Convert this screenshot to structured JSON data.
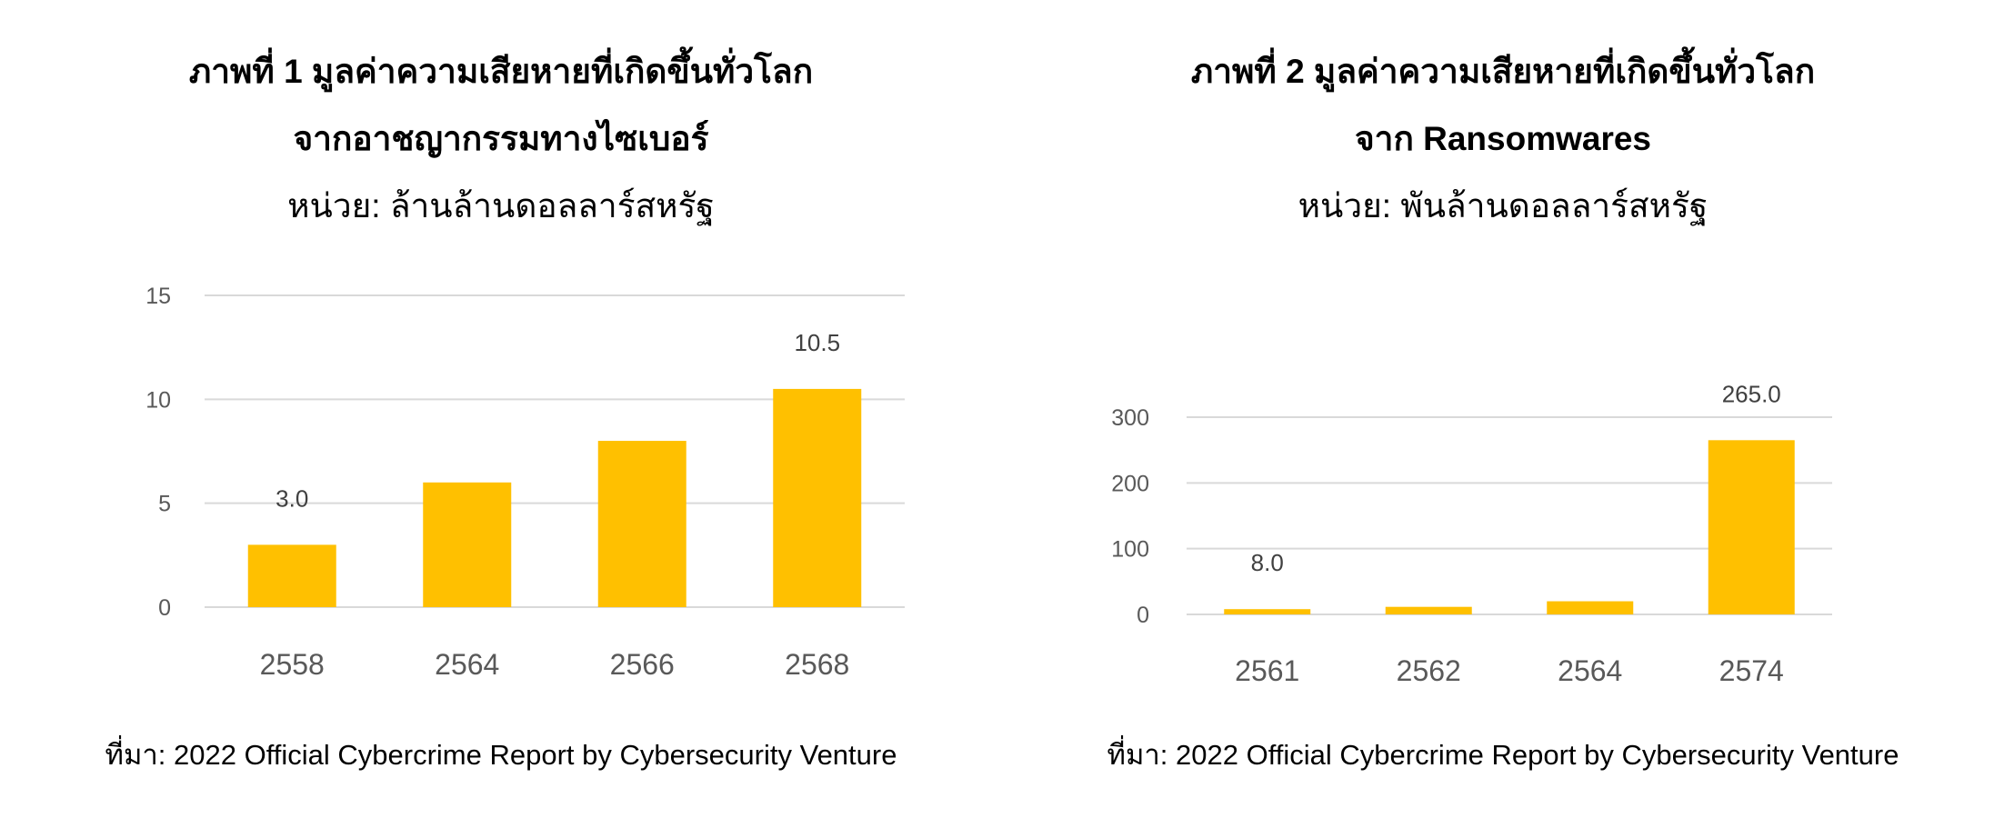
{
  "colors": {
    "bar": "#FFC000",
    "grid": "#D9D9D9",
    "tick_text": "#595959"
  },
  "chart_data": [
    {
      "type": "bar",
      "title": "ภาพที่ 1 มูลค่าความเสียหายที่เกิดขึ้นทั่วโลก",
      "subtitle": "จากอาชญากรรมทางไซเบอร์",
      "unit": "หน่วย: ล้านล้านดอลลาร์สหรัฐ",
      "categories": [
        "2558",
        "2564",
        "2566",
        "2568"
      ],
      "values": [
        3.0,
        6.0,
        8.0,
        10.5
      ],
      "data_labels": [
        "3.0",
        "",
        "",
        "10.5"
      ],
      "ylim": [
        0,
        15
      ],
      "yticks": [
        0,
        5,
        10,
        15
      ],
      "grid": true,
      "source": "ที่มา: 2022 Official Cybercrime Report by Cybersecurity Venture"
    },
    {
      "type": "bar",
      "title": "ภาพที่ 2 มูลค่าความเสียหายที่เกิดขึ้นทั่วโลก",
      "subtitle": "จาก Ransomwares",
      "unit": "หน่วย: พันล้านดอลลาร์สหรัฐ",
      "categories": [
        "2561",
        "2562",
        "2564",
        "2574"
      ],
      "values": [
        8.0,
        11.5,
        20.0,
        265.0
      ],
      "data_labels": [
        "8.0",
        "",
        "",
        "265.0"
      ],
      "ylim": [
        0,
        300
      ],
      "yticks": [
        0,
        100,
        200,
        300
      ],
      "grid": true,
      "source": "ที่มา: 2022 Official Cybercrime Report by Cybersecurity Venture"
    }
  ]
}
